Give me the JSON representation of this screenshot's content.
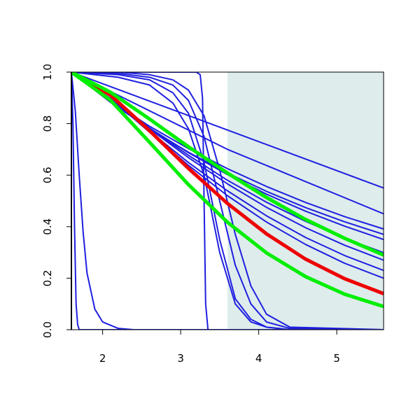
{
  "chart_data": {
    "type": "line",
    "xlim": [
      1.6,
      5.6
    ],
    "xticks": [
      2,
      3,
      4,
      5
    ],
    "ylim": [
      0,
      1
    ],
    "yticks": [
      {
        "value": 0,
        "label": "0.0"
      },
      {
        "value": 0.2,
        "label": "0.2"
      },
      {
        "value": 0.4,
        "label": "0.4"
      },
      {
        "value": 0.6,
        "label": "0.6"
      },
      {
        "value": 0.8,
        "label": "0.8"
      },
      {
        "value": 1,
        "label": "1.0"
      }
    ],
    "shaded_region": {
      "xlim": [
        3.6,
        5.6
      ],
      "color": "#deecec"
    },
    "series": [
      {
        "color": "#1f1fe0",
        "line_width": 2,
        "x": [
          1.6,
          5.6
        ],
        "values": [
          1,
          0.55
        ]
      },
      {
        "color": "#1f1fe0",
        "line_width": 2,
        "x": [
          1.6,
          3.6,
          5.6
        ],
        "values": [
          1,
          0.7,
          0.45
        ]
      },
      {
        "color": "#1f1fe0",
        "line_width": 2,
        "x": [
          1.6,
          2.1,
          2.6,
          3.1,
          3.6,
          4.1,
          4.6,
          5.1,
          5.6
        ],
        "values": [
          1,
          0.889,
          0.79,
          0.703,
          0.625,
          0.556,
          0.494,
          0.439,
          0.391
        ]
      },
      {
        "color": "#1f1fe0",
        "line_width": 2,
        "x": [
          1.6,
          2.1,
          2.6,
          3.1,
          3.6,
          4.1,
          4.6,
          5.1,
          5.6
        ],
        "values": [
          1,
          0.889,
          0.783,
          0.687,
          0.602,
          0.526,
          0.46,
          0.402,
          0.35
        ]
      },
      {
        "color": "#1f1fe0",
        "line_width": 2,
        "x": [
          1.6,
          2.1,
          2.6,
          3.1,
          3.6,
          4.1,
          4.6,
          5.1,
          5.6
        ],
        "values": [
          1,
          0.883,
          0.78,
          0.689,
          0.608,
          0.537,
          0.474,
          0.419,
          0.37
        ]
      },
      {
        "color": "#1f1fe0",
        "line_width": 2,
        "x": [
          1.6,
          2.1,
          2.6,
          3.1,
          3.6,
          4.1,
          4.6,
          5.1,
          5.6
        ],
        "values": [
          1,
          0.898,
          0.78,
          0.668,
          0.566,
          0.475,
          0.396,
          0.328,
          0.27
        ]
      },
      {
        "color": "#1f1fe0",
        "line_width": 2,
        "x": [
          1.6,
          2.1,
          2.6,
          3.1,
          3.6,
          4.1,
          4.6,
          5.1,
          5.6
        ],
        "values": [
          1,
          0.897,
          0.771,
          0.649,
          0.539,
          0.442,
          0.358,
          0.288,
          0.23
        ]
      },
      {
        "color": "#1f1fe0",
        "line_width": 2,
        "x": [
          1.6,
          2.1,
          2.6,
          3.1,
          3.6,
          4.1,
          4.6,
          5.1,
          5.6
        ],
        "values": [
          1,
          0.898,
          0.767,
          0.638,
          0.52,
          0.418,
          0.331,
          0.258,
          0.2
        ]
      },
      {
        "color": "#1f1fe0",
        "line_width": 2,
        "x": [
          1.6,
          2.1,
          2.6,
          3.1,
          3.6,
          4.1,
          4.6,
          5.1,
          5.6
        ],
        "values": [
          1,
          0.896,
          0.783,
          0.677,
          0.58,
          0.495,
          0.421,
          0.355,
          0.299
        ]
      },
      {
        "color": "#1f1fe0",
        "line_width": 2,
        "x": [
          1.6,
          1.62,
          1.64,
          1.66,
          1.68,
          1.7,
          5.6
        ],
        "values": [
          1,
          0.8,
          0.4,
          0.1,
          0.02,
          0,
          0
        ]
      },
      {
        "color": "#1f1fe0",
        "line_width": 2,
        "x": [
          1.6,
          1.65,
          1.7,
          1.75,
          1.8,
          1.9,
          2.0,
          2.2,
          2.4,
          5.6
        ],
        "values": [
          1,
          0.85,
          0.6,
          0.38,
          0.22,
          0.08,
          0.03,
          0.005,
          0,
          0
        ]
      },
      {
        "color": "#1f1fe0",
        "line_width": 2,
        "x": [
          1.6,
          3.2,
          3.25,
          3.28,
          3.3,
          3.32,
          3.35,
          5.6
        ],
        "values": [
          1,
          1,
          0.99,
          0.9,
          0.5,
          0.1,
          0,
          0
        ]
      },
      {
        "color": "#1f1fe0",
        "line_width": 2,
        "x": [
          1.6,
          2.2,
          2.6,
          2.9,
          3.1,
          3.3,
          3.5,
          3.7,
          3.9,
          4.1,
          4.4,
          5.6
        ],
        "values": [
          1,
          0.99,
          0.97,
          0.92,
          0.84,
          0.65,
          0.35,
          0.12,
          0.04,
          0.01,
          0,
          0
        ]
      },
      {
        "color": "#1f1fe0",
        "line_width": 2,
        "x": [
          1.6,
          2.2,
          2.6,
          2.9,
          3.1,
          3.3,
          3.5,
          3.7,
          3.9,
          4.1,
          4.4,
          5.6
        ],
        "values": [
          1,
          0.995,
          0.98,
          0.95,
          0.89,
          0.75,
          0.5,
          0.25,
          0.1,
          0.03,
          0.005,
          0
        ]
      },
      {
        "color": "#1f1fe0",
        "line_width": 2,
        "x": [
          1.6,
          2.2,
          2.6,
          2.9,
          3.1,
          3.3,
          3.5,
          3.7,
          3.9,
          4.1,
          4.4,
          5.6
        ],
        "values": [
          1,
          1,
          0.99,
          0.97,
          0.93,
          0.83,
          0.62,
          0.37,
          0.17,
          0.06,
          0.01,
          0
        ]
      },
      {
        "color": "#1f1fe0",
        "line_width": 2,
        "x": [
          1.6,
          2.2,
          2.6,
          2.9,
          3.1,
          3.3,
          3.5,
          3.7,
          3.9,
          4.1,
          4.4,
          5.6
        ],
        "values": [
          1,
          0.98,
          0.95,
          0.88,
          0.78,
          0.6,
          0.3,
          0.1,
          0.03,
          0.01,
          0,
          0
        ]
      },
      {
        "color": "#ee0000",
        "line_width": 5,
        "x": [
          1.6,
          2.1,
          2.6,
          3.1,
          3.6,
          4.1,
          4.6,
          5.1,
          5.6
        ],
        "values": [
          1,
          0.911,
          0.773,
          0.626,
          0.49,
          0.372,
          0.274,
          0.198,
          0.14
        ]
      },
      {
        "color": "#00ee00",
        "line_width": 5,
        "x": [
          1.6,
          2.1,
          2.6,
          3.1,
          3.6,
          4.1,
          4.6,
          5.1,
          5.6
        ],
        "values": [
          1,
          0.891,
          0.728,
          0.563,
          0.417,
          0.298,
          0.206,
          0.138,
          0.09
        ]
      },
      {
        "color": "#00ee00",
        "line_width": 5,
        "x": [
          1.6,
          2.1,
          2.6,
          3.1,
          3.6,
          4.1,
          4.6,
          5.1,
          5.6
        ],
        "values": [
          1,
          0.922,
          0.818,
          0.71,
          0.608,
          0.513,
          0.428,
          0.355,
          0.29
        ]
      }
    ]
  }
}
